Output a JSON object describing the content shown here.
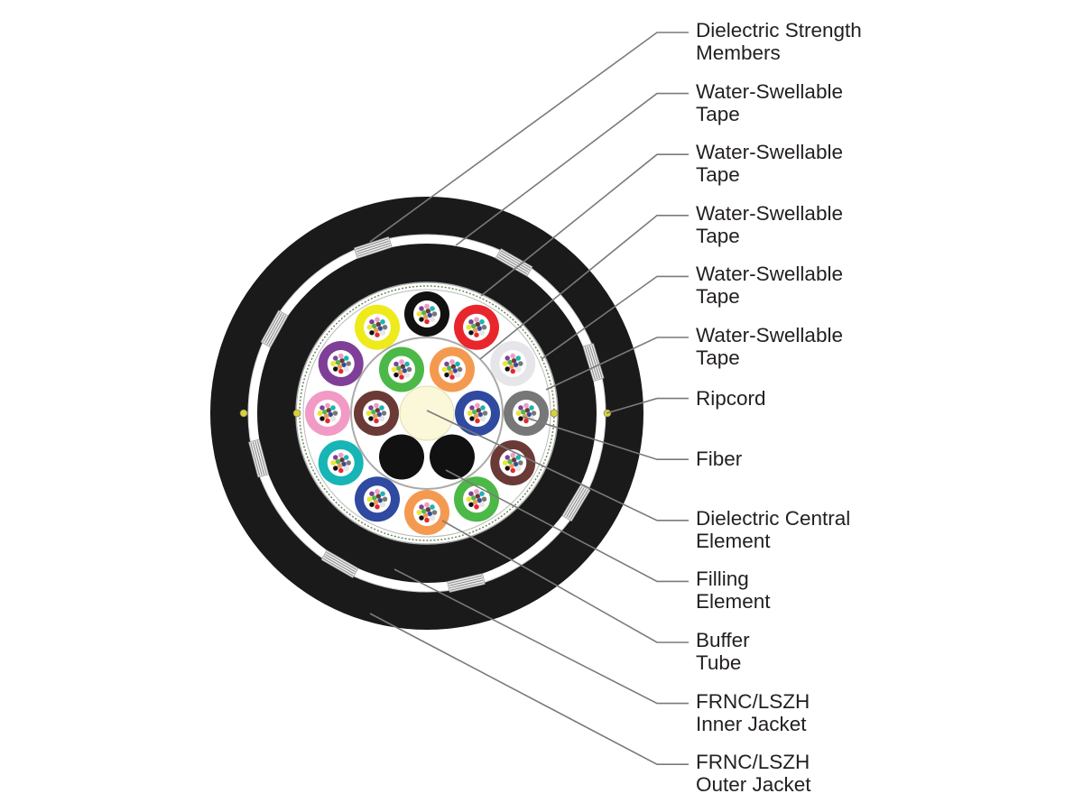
{
  "labels": [
    {
      "lines": [
        "Dielectric Strength",
        "Members"
      ]
    },
    {
      "lines": [
        "Water-Swellable",
        "Tape"
      ]
    },
    {
      "lines": [
        "Water-Swellable",
        "Tape"
      ]
    },
    {
      "lines": [
        "Water-Swellable",
        "Tape"
      ]
    },
    {
      "lines": [
        "Water-Swellable",
        "Tape"
      ]
    },
    {
      "lines": [
        "Water-Swellable",
        "Tape"
      ]
    },
    {
      "lines": [
        "Ripcord"
      ]
    },
    {
      "lines": [
        "Fiber"
      ]
    },
    {
      "lines": [
        "Dielectric Central",
        "Element"
      ]
    },
    {
      "lines": [
        "Filling",
        "Element"
      ]
    },
    {
      "lines": [
        "Buffer",
        "Tube"
      ]
    },
    {
      "lines": [
        "FRNC/LSZH",
        "Inner Jacket"
      ]
    },
    {
      "lines": [
        "FRNC/LSZH",
        "Outer Jacket"
      ]
    }
  ],
  "colors": {
    "jacket": "#1a1a1a",
    "leader": "#7a7a7a",
    "central_element": "#fbf8d9",
    "ripcord": "#d8d23a",
    "outer_tubes": [
      "#111111",
      "#e8262b",
      "#e6e6ea",
      "#777777",
      "#6b3a36",
      "#4cb848",
      "#f49a50",
      "#2f4aa0",
      "#17b5b5",
      "#f19ac6",
      "#7f3f98",
      "#eeea1c"
    ],
    "inner_tubes": [
      "#f49a50",
      "#2f4aa0",
      "#111111",
      "#111111",
      "#6b3a36",
      "#4cb848"
    ],
    "fibers": [
      "#2f4aa0",
      "#f49a50",
      "#4cb848",
      "#6b3a36",
      "#777777",
      "#e8e8e8",
      "#e8262b",
      "#111111",
      "#eeea1c",
      "#7f3f98",
      "#f19ac6",
      "#17b5b5"
    ]
  }
}
